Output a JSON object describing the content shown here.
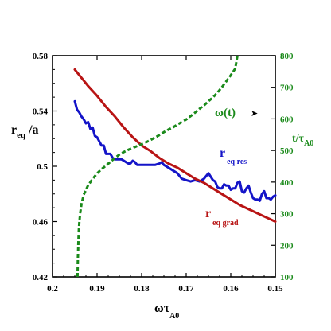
{
  "chart_data": {
    "type": "line",
    "x_axis": {
      "label_main": "ωτ",
      "label_sub": "A0",
      "reversed": true,
      "range": [
        0.2,
        0.15
      ],
      "ticks": [
        "0.2",
        "0.19",
        "0.18",
        "0.17",
        "0.16",
        "0.15"
      ]
    },
    "y_left": {
      "label_main": "r",
      "label_sub": "eq",
      "label_tail": "/a",
      "range": [
        0.42,
        0.58
      ],
      "ticks": [
        "0.42",
        "0.46",
        "0.5",
        "0.54",
        "0.58"
      ]
    },
    "y_right": {
      "label_main": "t/τ",
      "label_sub": "A0",
      "range": [
        100,
        800
      ],
      "ticks": [
        "100",
        "200",
        "300",
        "400",
        "500",
        "600",
        "700",
        "800"
      ]
    },
    "colors": {
      "res": "#1414c8",
      "grad": "#b81414",
      "time": "#1a8a1a",
      "axis": "#000000"
    },
    "series": [
      {
        "key": "res",
        "name_main": "r",
        "name_sub": "eq res",
        "axis": "left",
        "style": "solid",
        "x": [
          0.195,
          0.1945,
          0.194,
          0.1935,
          0.193,
          0.1925,
          0.192,
          0.1915,
          0.191,
          0.1905,
          0.19,
          0.1895,
          0.189,
          0.1885,
          0.188,
          0.1875,
          0.187,
          0.1865,
          0.186,
          0.1855,
          0.185,
          0.1845,
          0.184,
          0.1835,
          0.183,
          0.1825,
          0.182,
          0.1815,
          0.181,
          0.18,
          0.179,
          0.178,
          0.177,
          0.176,
          0.1755,
          0.175,
          0.1745,
          0.174,
          0.173,
          0.172,
          0.171,
          0.17,
          0.169,
          0.168,
          0.167,
          0.166,
          0.165,
          0.164,
          0.1635,
          0.163,
          0.1625,
          0.162,
          0.1615,
          0.161,
          0.1605,
          0.16,
          0.1595,
          0.159,
          0.1585,
          0.158,
          0.1575,
          0.157,
          0.1565,
          0.156,
          0.1555,
          0.155,
          0.1545,
          0.154,
          0.1535,
          0.153,
          0.1525,
          0.152,
          0.1515,
          0.151,
          0.1505,
          0.15
        ],
        "y": [
          0.547,
          0.541,
          0.539,
          0.536,
          0.534,
          0.531,
          0.532,
          0.527,
          0.528,
          0.522,
          0.521,
          0.518,
          0.515,
          0.515,
          0.509,
          0.509,
          0.509,
          0.506,
          0.505,
          0.505,
          0.505,
          0.505,
          0.504,
          0.503,
          0.502,
          0.502,
          0.504,
          0.503,
          0.501,
          0.501,
          0.501,
          0.501,
          0.501,
          0.502,
          0.503,
          0.501,
          0.5,
          0.499,
          0.497,
          0.495,
          0.491,
          0.49,
          0.489,
          0.49,
          0.489,
          0.491,
          0.495,
          0.49,
          0.489,
          0.485,
          0.484,
          0.484,
          0.487,
          0.486,
          0.486,
          0.483,
          0.484,
          0.484,
          0.488,
          0.489,
          0.482,
          0.481,
          0.484,
          0.486,
          0.481,
          0.477,
          0.476,
          0.476,
          0.475,
          0.48,
          0.482,
          0.477,
          0.477,
          0.476,
          0.478,
          0.479
        ]
      },
      {
        "key": "grad",
        "name_main": "r",
        "name_sub": "eq grad",
        "axis": "left",
        "style": "solid",
        "x": [
          0.195,
          0.1935,
          0.192,
          0.19,
          0.188,
          0.186,
          0.184,
          0.182,
          0.18,
          0.178,
          0.176,
          0.174,
          0.172,
          0.17,
          0.168,
          0.166,
          0.164,
          0.162,
          0.16,
          0.158,
          0.156,
          0.154,
          0.152,
          0.15
        ],
        "y": [
          0.57,
          0.564,
          0.558,
          0.551,
          0.543,
          0.536,
          0.528,
          0.521,
          0.515,
          0.511,
          0.506,
          0.502,
          0.499,
          0.495,
          0.491,
          0.488,
          0.484,
          0.48,
          0.476,
          0.472,
          0.469,
          0.466,
          0.463,
          0.46
        ]
      },
      {
        "key": "time",
        "name_main": "ω(t)",
        "name_sub": "",
        "axis": "right",
        "style": "dashed",
        "x": [
          0.1944,
          0.1943,
          0.1942,
          0.1941,
          0.194,
          0.1938,
          0.1935,
          0.193,
          0.192,
          0.191,
          0.19,
          0.189,
          0.188,
          0.187,
          0.186,
          0.185,
          0.184,
          0.183,
          0.182,
          0.181,
          0.18,
          0.179,
          0.178,
          0.177,
          0.176,
          0.175,
          0.174,
          0.173,
          0.172,
          0.171,
          0.17,
          0.169,
          0.168,
          0.167,
          0.166,
          0.165,
          0.164,
          0.163,
          0.162,
          0.161,
          0.16,
          0.159,
          0.1585
        ],
        "y": [
          100,
          160,
          210,
          245,
          270,
          300,
          330,
          360,
          390,
          410,
          427,
          441,
          452,
          464,
          476,
          487,
          495,
          502,
          508,
          514,
          520,
          526,
          533,
          541,
          549,
          558,
          566,
          573,
          582,
          590,
          598,
          609,
          620,
          632,
          643,
          656,
          668,
          683,
          700,
          719,
          738,
          759,
          800
        ]
      }
    ],
    "annotation_arrow": "➤"
  }
}
